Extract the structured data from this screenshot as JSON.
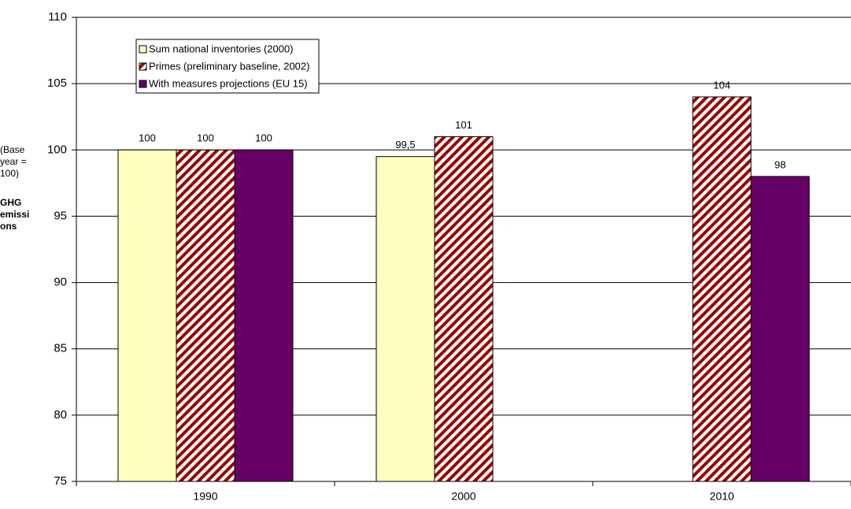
{
  "chart_data": {
    "type": "bar",
    "y_label_note": "(Base year = 100)",
    "y_label": "GHG emissions",
    "categories": [
      "1990",
      "2000",
      "2010"
    ],
    "series": [
      {
        "name": "Sum national inventories (2000)",
        "color": "#ffffc0",
        "values": [
          100,
          99.5,
          null
        ],
        "value_labels": [
          "100",
          "99,5",
          null
        ]
      },
      {
        "name": "Primes (preliminary baseline, 2002)",
        "color": "#990000",
        "hatch": true,
        "values": [
          100,
          101,
          104
        ]
      },
      {
        "name": "With measures projections (EU 15)",
        "color": "#660066",
        "values": [
          100,
          null,
          98
        ]
      }
    ],
    "ylim": [
      75,
      110
    ],
    "yticks": [
      75,
      80,
      85,
      90,
      95,
      100,
      105,
      110
    ],
    "grid": true
  }
}
